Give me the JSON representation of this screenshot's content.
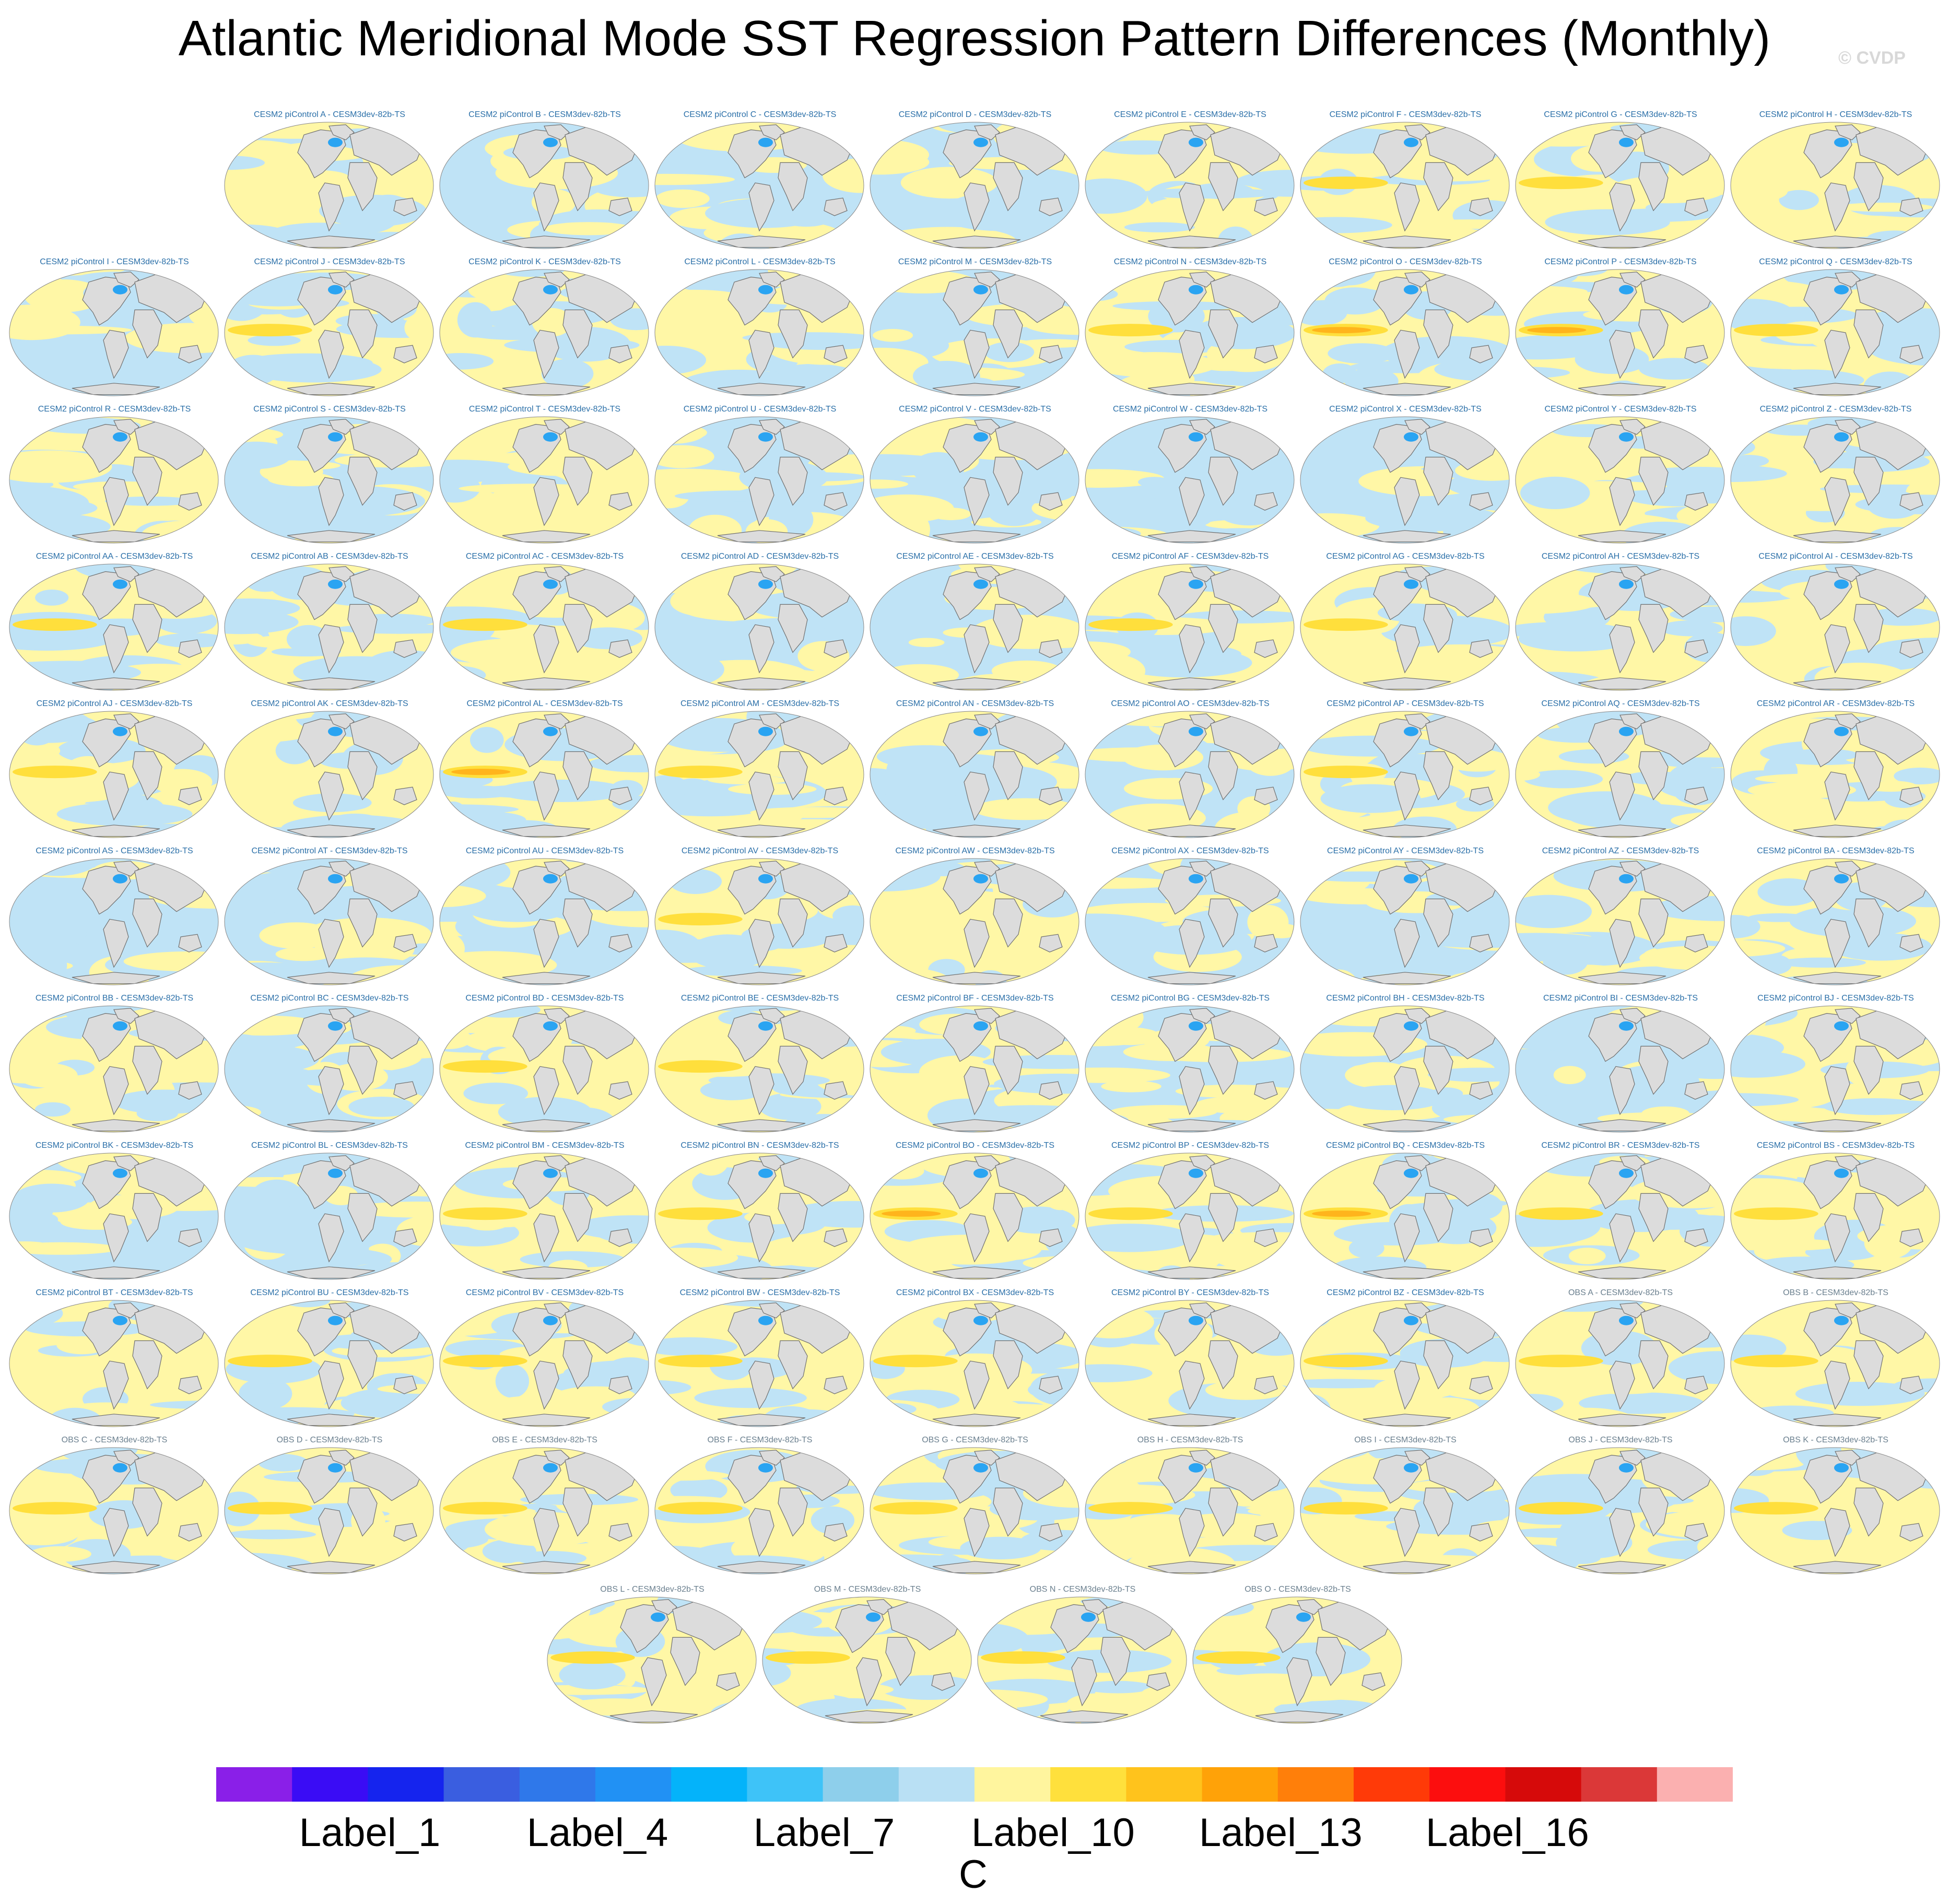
{
  "title": "Atlantic Meridional Mode SST Regression Pattern Differences (Monthly)",
  "watermark": "© CVDP",
  "panels": [
    {
      "label": "CESM2 piControl A - CESM3dev-82b-TS",
      "kind": "model",
      "pattern": "neutral"
    },
    {
      "label": "CESM2 piControl B - CESM3dev-82b-TS",
      "kind": "model",
      "pattern": "cool"
    },
    {
      "label": "CESM2 piControl C - CESM3dev-82b-TS",
      "kind": "model",
      "pattern": "cool"
    },
    {
      "label": "CESM2 piControl D - CESM3dev-82b-TS",
      "kind": "model",
      "pattern": "cool"
    },
    {
      "label": "CESM2 piControl E - CESM3dev-82b-TS",
      "kind": "model",
      "pattern": "neutral"
    },
    {
      "label": "CESM2 piControl F - CESM3dev-82b-TS",
      "kind": "model",
      "pattern": "warm"
    },
    {
      "label": "CESM2 piControl G - CESM3dev-82b-TS",
      "kind": "model",
      "pattern": "warm"
    },
    {
      "label": "CESM2 piControl H - CESM3dev-82b-TS",
      "kind": "model",
      "pattern": "neutral"
    },
    {
      "label": "CESM2 piControl I - CESM3dev-82b-TS",
      "kind": "model",
      "pattern": "cool"
    },
    {
      "label": "CESM2 piControl J - CESM3dev-82b-TS",
      "kind": "model",
      "pattern": "warm"
    },
    {
      "label": "CESM2 piControl K - CESM3dev-82b-TS",
      "kind": "model",
      "pattern": "neutral"
    },
    {
      "label": "CESM2 piControl L - CESM3dev-82b-TS",
      "kind": "model",
      "pattern": "neutral"
    },
    {
      "label": "CESM2 piControl M - CESM3dev-82b-TS",
      "kind": "model",
      "pattern": "cool"
    },
    {
      "label": "CESM2 piControl N - CESM3dev-82b-TS",
      "kind": "model",
      "pattern": "warm"
    },
    {
      "label": "CESM2 piControl O - CESM3dev-82b-TS",
      "kind": "model",
      "pattern": "hot"
    },
    {
      "label": "CESM2 piControl P - CESM3dev-82b-TS",
      "kind": "model",
      "pattern": "hot"
    },
    {
      "label": "CESM2 piControl Q - CESM3dev-82b-TS",
      "kind": "model",
      "pattern": "warm"
    },
    {
      "label": "CESM2 piControl R - CESM3dev-82b-TS",
      "kind": "model",
      "pattern": "neutral"
    },
    {
      "label": "CESM2 piControl S - CESM3dev-82b-TS",
      "kind": "model",
      "pattern": "cool"
    },
    {
      "label": "CESM2 piControl T - CESM3dev-82b-TS",
      "kind": "model",
      "pattern": "neutral"
    },
    {
      "label": "CESM2 piControl U - CESM3dev-82b-TS",
      "kind": "model",
      "pattern": "cool"
    },
    {
      "label": "CESM2 piControl V - CESM3dev-82b-TS",
      "kind": "model",
      "pattern": "cool"
    },
    {
      "label": "CESM2 piControl W - CESM3dev-82b-TS",
      "kind": "model",
      "pattern": "cool"
    },
    {
      "label": "CESM2 piControl X - CESM3dev-82b-TS",
      "kind": "model",
      "pattern": "cool"
    },
    {
      "label": "CESM2 piControl Y - CESM3dev-82b-TS",
      "kind": "model",
      "pattern": "neutral"
    },
    {
      "label": "CESM2 piControl Z - CESM3dev-82b-TS",
      "kind": "model",
      "pattern": "neutral"
    },
    {
      "label": "CESM2 piControl AA - CESM3dev-82b-TS",
      "kind": "model",
      "pattern": "warm"
    },
    {
      "label": "CESM2 piControl AB - CESM3dev-82b-TS",
      "kind": "model",
      "pattern": "neutral"
    },
    {
      "label": "CESM2 piControl AC - CESM3dev-82b-TS",
      "kind": "model",
      "pattern": "warm"
    },
    {
      "label": "CESM2 piControl AD - CESM3dev-82b-TS",
      "kind": "model",
      "pattern": "cool"
    },
    {
      "label": "CESM2 piControl AE - CESM3dev-82b-TS",
      "kind": "model",
      "pattern": "cool"
    },
    {
      "label": "CESM2 piControl AF - CESM3dev-82b-TS",
      "kind": "model",
      "pattern": "warm"
    },
    {
      "label": "CESM2 piControl AG - CESM3dev-82b-TS",
      "kind": "model",
      "pattern": "warm"
    },
    {
      "label": "CESM2 piControl AH - CESM3dev-82b-TS",
      "kind": "model",
      "pattern": "neutral"
    },
    {
      "label": "CESM2 piControl AI - CESM3dev-82b-TS",
      "kind": "model",
      "pattern": "neutral"
    },
    {
      "label": "CESM2 piControl AJ - CESM3dev-82b-TS",
      "kind": "model",
      "pattern": "warm"
    },
    {
      "label": "CESM2 piControl AK - CESM3dev-82b-TS",
      "kind": "model",
      "pattern": "neutral"
    },
    {
      "label": "CESM2 piControl AL - CESM3dev-82b-TS",
      "kind": "model",
      "pattern": "hot"
    },
    {
      "label": "CESM2 piControl AM - CESM3dev-82b-TS",
      "kind": "model",
      "pattern": "warm"
    },
    {
      "label": "CESM2 piControl AN - CESM3dev-82b-TS",
      "kind": "model",
      "pattern": "cool"
    },
    {
      "label": "CESM2 piControl AO - CESM3dev-82b-TS",
      "kind": "model",
      "pattern": "cool"
    },
    {
      "label": "CESM2 piControl AP - CESM3dev-82b-TS",
      "kind": "model",
      "pattern": "warm"
    },
    {
      "label": "CESM2 piControl AQ - CESM3dev-82b-TS",
      "kind": "model",
      "pattern": "neutral"
    },
    {
      "label": "CESM2 piControl AR - CESM3dev-82b-TS",
      "kind": "model",
      "pattern": "neutral"
    },
    {
      "label": "CESM2 piControl AS - CESM3dev-82b-TS",
      "kind": "model",
      "pattern": "cool"
    },
    {
      "label": "CESM2 piControl AT - CESM3dev-82b-TS",
      "kind": "model",
      "pattern": "cool"
    },
    {
      "label": "CESM2 piControl AU - CESM3dev-82b-TS",
      "kind": "model",
      "pattern": "cool"
    },
    {
      "label": "CESM2 piControl AV - CESM3dev-82b-TS",
      "kind": "model",
      "pattern": "warm"
    },
    {
      "label": "CESM2 piControl AW - CESM3dev-82b-TS",
      "kind": "model",
      "pattern": "neutral"
    },
    {
      "label": "CESM2 piControl AX - CESM3dev-82b-TS",
      "kind": "model",
      "pattern": "cool"
    },
    {
      "label": "CESM2 piControl AY - CESM3dev-82b-TS",
      "kind": "model",
      "pattern": "cool"
    },
    {
      "label": "CESM2 piControl AZ - CESM3dev-82b-TS",
      "kind": "model",
      "pattern": "neutral"
    },
    {
      "label": "CESM2 piControl BA - CESM3dev-82b-TS",
      "kind": "model",
      "pattern": "neutral"
    },
    {
      "label": "CESM2 piControl BB - CESM3dev-82b-TS",
      "kind": "model",
      "pattern": "neutral"
    },
    {
      "label": "CESM2 piControl BC - CESM3dev-82b-TS",
      "kind": "model",
      "pattern": "cool"
    },
    {
      "label": "CESM2 piControl BD - CESM3dev-82b-TS",
      "kind": "model",
      "pattern": "warm"
    },
    {
      "label": "CESM2 piControl BE - CESM3dev-82b-TS",
      "kind": "model",
      "pattern": "warm"
    },
    {
      "label": "CESM2 piControl BF - CESM3dev-82b-TS",
      "kind": "model",
      "pattern": "neutral"
    },
    {
      "label": "CESM2 piControl BG - CESM3dev-82b-TS",
      "kind": "model",
      "pattern": "cool"
    },
    {
      "label": "CESM2 piControl BH - CESM3dev-82b-TS",
      "kind": "model",
      "pattern": "cool"
    },
    {
      "label": "CESM2 piControl BI - CESM3dev-82b-TS",
      "kind": "model",
      "pattern": "cool"
    },
    {
      "label": "CESM2 piControl BJ - CESM3dev-82b-TS",
      "kind": "model",
      "pattern": "neutral"
    },
    {
      "label": "CESM2 piControl BK - CESM3dev-82b-TS",
      "kind": "model",
      "pattern": "cool"
    },
    {
      "label": "CESM2 piControl BL - CESM3dev-82b-TS",
      "kind": "model",
      "pattern": "cool"
    },
    {
      "label": "CESM2 piControl BM - CESM3dev-82b-TS",
      "kind": "model",
      "pattern": "warm"
    },
    {
      "label": "CESM2 piControl BN - CESM3dev-82b-TS",
      "kind": "model",
      "pattern": "warm"
    },
    {
      "label": "CESM2 piControl BO - CESM3dev-82b-TS",
      "kind": "model",
      "pattern": "hot"
    },
    {
      "label": "CESM2 piControl BP - CESM3dev-82b-TS",
      "kind": "model",
      "pattern": "warm"
    },
    {
      "label": "CESM2 piControl BQ - CESM3dev-82b-TS",
      "kind": "model",
      "pattern": "hot"
    },
    {
      "label": "CESM2 piControl BR - CESM3dev-82b-TS",
      "kind": "model",
      "pattern": "warm"
    },
    {
      "label": "CESM2 piControl BS - CESM3dev-82b-TS",
      "kind": "model",
      "pattern": "warm"
    },
    {
      "label": "CESM2 piControl BT - CESM3dev-82b-TS",
      "kind": "model",
      "pattern": "neutral"
    },
    {
      "label": "CESM2 piControl BU - CESM3dev-82b-TS",
      "kind": "model",
      "pattern": "warm"
    },
    {
      "label": "CESM2 piControl BV - CESM3dev-82b-TS",
      "kind": "model",
      "pattern": "warm"
    },
    {
      "label": "CESM2 piControl BW - CESM3dev-82b-TS",
      "kind": "model",
      "pattern": "warm"
    },
    {
      "label": "CESM2 piControl BX - CESM3dev-82b-TS",
      "kind": "model",
      "pattern": "warm"
    },
    {
      "label": "CESM2 piControl BY - CESM3dev-82b-TS",
      "kind": "model",
      "pattern": "neutral"
    },
    {
      "label": "CESM2 piControl BZ - CESM3dev-82b-TS",
      "kind": "model",
      "pattern": "warm"
    },
    {
      "label": "OBS A - CESM3dev-82b-TS",
      "kind": "obs",
      "pattern": "warm"
    },
    {
      "label": "OBS B - CESM3dev-82b-TS",
      "kind": "obs",
      "pattern": "warm"
    },
    {
      "label": "OBS C - CESM3dev-82b-TS",
      "kind": "obs",
      "pattern": "warm"
    },
    {
      "label": "OBS D - CESM3dev-82b-TS",
      "kind": "obs",
      "pattern": "warm"
    },
    {
      "label": "OBS E - CESM3dev-82b-TS",
      "kind": "obs",
      "pattern": "warm"
    },
    {
      "label": "OBS F - CESM3dev-82b-TS",
      "kind": "obs",
      "pattern": "warm"
    },
    {
      "label": "OBS G - CESM3dev-82b-TS",
      "kind": "obs",
      "pattern": "warm"
    },
    {
      "label": "OBS H - CESM3dev-82b-TS",
      "kind": "obs",
      "pattern": "warm"
    },
    {
      "label": "OBS I - CESM3dev-82b-TS",
      "kind": "obs",
      "pattern": "warm"
    },
    {
      "label": "OBS J - CESM3dev-82b-TS",
      "kind": "obs",
      "pattern": "warm"
    },
    {
      "label": "OBS K - CESM3dev-82b-TS",
      "kind": "obs",
      "pattern": "warm"
    },
    {
      "label": "OBS L - CESM3dev-82b-TS",
      "kind": "obs",
      "pattern": "warm"
    },
    {
      "label": "OBS M - CESM3dev-82b-TS",
      "kind": "obs",
      "pattern": "warm"
    },
    {
      "label": "OBS N - CESM3dev-82b-TS",
      "kind": "obs",
      "pattern": "warm"
    },
    {
      "label": "OBS O - CESM3dev-82b-TS",
      "kind": "obs",
      "pattern": "warm"
    }
  ],
  "colorbar": {
    "colors": [
      "#8a1fe8",
      "#3a0cf5",
      "#1524ee",
      "#3a5ee0",
      "#2f78ea",
      "#2191f4",
      "#04b3fa",
      "#3ec3f8",
      "#8ecfeb",
      "#b9e0f4",
      "#fff59e",
      "#ffe03c",
      "#ffc31c",
      "#ffa208",
      "#ff7f0a",
      "#ff3a08",
      "#fc0e0e",
      "#d60a0a",
      "#db3838",
      "#fbb0b0"
    ],
    "tick_labels": [
      "Label_1",
      "Label_4",
      "Label_7",
      "Label_10",
      "Label_13",
      "Label_16"
    ],
    "units": "C"
  },
  "map_colors": {
    "ocean_cool": "#bfe3f6",
    "ocean_warm": "#fff7a6",
    "ocean_hot": "#ffdf3c",
    "ocean_strong": "#ffb41c",
    "land": "#dcdcdc",
    "coast": "#6f6f6f",
    "ice_blue": "#2aa4f2"
  }
}
